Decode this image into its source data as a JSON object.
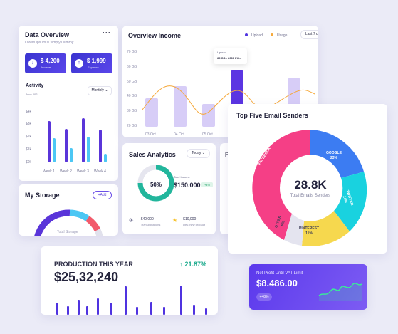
{
  "data_overview": {
    "title": "Data Overview",
    "menu_icon": "more-dots-icon",
    "tagline": "Lorem Ipsum is simply Dummy",
    "income_value": "$ 4,200",
    "income_label": "Income",
    "expense_value": "$ 1,999",
    "expense_label": "Expense",
    "activity_title": "Activity",
    "activity_date": "June 2021",
    "period_select": "Monthly",
    "y_ticks": [
      "$4k",
      "$3k",
      "$2k",
      "$1k",
      "$0k"
    ],
    "weeks": [
      "Week 1",
      "Week 2",
      "Week 3",
      "Week 4"
    ]
  },
  "storage": {
    "title": "My Storage",
    "add_label": "+Add",
    "total_label": "Total Storage"
  },
  "income": {
    "title": "Overview Income",
    "legend_upload": "Upload",
    "legend_usage": "Usage",
    "period": "Last 7 d",
    "y_ticks": [
      "70 GB",
      "60 GB",
      "50 GB",
      "40 GB",
      "30 GB",
      "20 GB",
      "10 GB"
    ],
    "x_ticks": [
      "03 Oct",
      "04 Oct",
      "05 Oct"
    ],
    "tooltip_label": "Upload",
    "tooltip_value": "65 GB - 2000 Files"
  },
  "sales": {
    "title": "Sales Analytics",
    "period": "Today",
    "percent": "50%",
    "total_label": "Total Income",
    "total_value": "$150.000",
    "badge": "+4%",
    "stat1_value": "$40,000",
    "stat1_label": "Transportations",
    "stat2_value": "$10,000",
    "stat2_label": "Dev. new product"
  },
  "partial_card": {
    "title": "P"
  },
  "top_senders": {
    "title": "Top Five Email Senders",
    "center_value": "28.8K",
    "center_label": "Total Emails Senders",
    "segments": [
      {
        "name": "FACEBOOK",
        "pct": "",
        "color": "#f53f86"
      },
      {
        "name": "GOOGLE",
        "pct": "23%",
        "color": "#3c7cf2"
      },
      {
        "name": "TWITTER",
        "pct": "24%",
        "color": "#19d2df"
      },
      {
        "name": "PINTEREST",
        "pct": "11%",
        "color": "#f6d84e"
      },
      {
        "name": "OTHER",
        "pct": "6%",
        "color": "#e4e4ef"
      }
    ]
  },
  "production": {
    "title": "PRODUCTION THIS YEAR",
    "value": "$25,32,240",
    "change": "21.87%"
  },
  "profit": {
    "label": "Net Profit Until VAT Limit",
    "value": "$8.486.00",
    "badge": "+48%"
  },
  "colors": {
    "primary": "#4f33e0",
    "accent_light": "#d7cdf7",
    "cyan": "#4cc7f4",
    "orange": "#f6a93b"
  }
}
